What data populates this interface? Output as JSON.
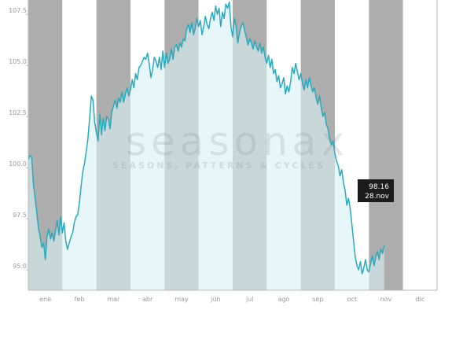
{
  "chart_data": {
    "type": "line",
    "x_labels": [
      "ene",
      "feb",
      "mar",
      "abr",
      "may",
      "jun",
      "jul",
      "ago",
      "sep",
      "oct",
      "nov",
      "dic"
    ],
    "y_ticks": [
      "95.0",
      "97.5",
      "100.0",
      "102.5",
      "105.0",
      "107.5"
    ],
    "ylim": [
      94.0,
      108.2
    ],
    "grid": "alternating month bands",
    "colors": {
      "line": "#29a9bd",
      "fill": "#d8f1f5",
      "band_gray": "#adadad",
      "tooltip_bg": "#1c1c1c"
    },
    "watermark": {
      "brand": "seasonax",
      "tagline": "SEASONS, PATTERNS & CYCLES"
    },
    "tooltip": {
      "value": "98.16",
      "date": "28.nov"
    },
    "series": [
      {
        "values": [
          [
            0.0,
            100.4
          ],
          [
            0.05,
            100.6
          ],
          [
            0.1,
            100.5
          ],
          [
            0.15,
            99.2
          ],
          [
            0.2,
            98.5
          ],
          [
            0.25,
            97.8
          ],
          [
            0.3,
            97.0
          ],
          [
            0.35,
            96.6
          ],
          [
            0.4,
            96.1
          ],
          [
            0.45,
            96.3
          ],
          [
            0.5,
            95.5
          ],
          [
            0.55,
            96.6
          ],
          [
            0.6,
            97.0
          ],
          [
            0.65,
            96.5
          ],
          [
            0.7,
            96.8
          ],
          [
            0.75,
            96.4
          ],
          [
            0.8,
            96.9
          ],
          [
            0.85,
            97.4
          ],
          [
            0.9,
            96.7
          ],
          [
            0.95,
            97.6
          ],
          [
            1.0,
            96.8
          ],
          [
            1.05,
            97.3
          ],
          [
            1.1,
            96.4
          ],
          [
            1.15,
            96.0
          ],
          [
            1.2,
            96.3
          ],
          [
            1.25,
            96.6
          ],
          [
            1.3,
            96.8
          ],
          [
            1.35,
            97.3
          ],
          [
            1.4,
            97.6
          ],
          [
            1.45,
            97.7
          ],
          [
            1.5,
            98.3
          ],
          [
            1.55,
            99.1
          ],
          [
            1.6,
            99.8
          ],
          [
            1.65,
            100.2
          ],
          [
            1.7,
            100.8
          ],
          [
            1.75,
            101.4
          ],
          [
            1.8,
            102.4
          ],
          [
            1.85,
            103.5
          ],
          [
            1.9,
            103.3
          ],
          [
            1.95,
            102.2
          ],
          [
            2.0,
            101.7
          ],
          [
            2.05,
            101.3
          ],
          [
            2.1,
            102.6
          ],
          [
            2.15,
            101.6
          ],
          [
            2.2,
            102.4
          ],
          [
            2.25,
            101.8
          ],
          [
            2.3,
            102.5
          ],
          [
            2.35,
            102.4
          ],
          [
            2.4,
            101.9
          ],
          [
            2.45,
            102.7
          ],
          [
            2.5,
            103.0
          ],
          [
            2.55,
            103.3
          ],
          [
            2.6,
            102.9
          ],
          [
            2.65,
            103.4
          ],
          [
            2.7,
            103.2
          ],
          [
            2.75,
            103.7
          ],
          [
            2.8,
            103.2
          ],
          [
            2.85,
            103.6
          ],
          [
            2.9,
            103.9
          ],
          [
            2.95,
            103.5
          ],
          [
            3.0,
            103.8
          ],
          [
            3.05,
            104.3
          ],
          [
            3.1,
            103.9
          ],
          [
            3.15,
            104.6
          ],
          [
            3.2,
            104.3
          ],
          [
            3.25,
            104.9
          ],
          [
            3.3,
            105.0
          ],
          [
            3.35,
            105.2
          ],
          [
            3.4,
            105.4
          ],
          [
            3.45,
            105.3
          ],
          [
            3.5,
            105.6
          ],
          [
            3.55,
            105.1
          ],
          [
            3.6,
            104.4
          ],
          [
            3.65,
            104.8
          ],
          [
            3.7,
            105.4
          ],
          [
            3.75,
            105.2
          ],
          [
            3.8,
            104.9
          ],
          [
            3.85,
            105.4
          ],
          [
            3.9,
            104.8
          ],
          [
            3.95,
            105.7
          ],
          [
            4.0,
            104.9
          ],
          [
            4.05,
            105.6
          ],
          [
            4.1,
            105.1
          ],
          [
            4.15,
            105.3
          ],
          [
            4.2,
            105.8
          ],
          [
            4.25,
            105.3
          ],
          [
            4.3,
            105.9
          ],
          [
            4.35,
            106.0
          ],
          [
            4.4,
            105.7
          ],
          [
            4.45,
            106.1
          ],
          [
            4.5,
            105.9
          ],
          [
            4.55,
            106.3
          ],
          [
            4.6,
            106.2
          ],
          [
            4.65,
            106.8
          ],
          [
            4.7,
            107.0
          ],
          [
            4.75,
            106.6
          ],
          [
            4.8,
            107.1
          ],
          [
            4.85,
            106.5
          ],
          [
            4.9,
            106.8
          ],
          [
            4.95,
            107.3
          ],
          [
            5.0,
            106.9
          ],
          [
            5.05,
            107.2
          ],
          [
            5.1,
            106.5
          ],
          [
            5.15,
            106.9
          ],
          [
            5.2,
            107.4
          ],
          [
            5.25,
            107.0
          ],
          [
            5.3,
            106.8
          ],
          [
            5.35,
            107.3
          ],
          [
            5.4,
            107.6
          ],
          [
            5.45,
            107.2
          ],
          [
            5.5,
            107.9
          ],
          [
            5.55,
            107.5
          ],
          [
            5.6,
            107.8
          ],
          [
            5.65,
            106.9
          ],
          [
            5.7,
            107.6
          ],
          [
            5.75,
            107.3
          ],
          [
            5.8,
            108.0
          ],
          [
            5.85,
            107.8
          ],
          [
            5.9,
            108.1
          ],
          [
            5.95,
            106.9
          ],
          [
            6.0,
            106.4
          ],
          [
            6.05,
            107.3
          ],
          [
            6.1,
            106.9
          ],
          [
            6.15,
            106.1
          ],
          [
            6.2,
            106.6
          ],
          [
            6.25,
            106.9
          ],
          [
            6.3,
            107.1
          ],
          [
            6.35,
            106.7
          ],
          [
            6.4,
            106.4
          ],
          [
            6.45,
            106.0
          ],
          [
            6.5,
            106.3
          ],
          [
            6.55,
            106.1
          ],
          [
            6.6,
            105.8
          ],
          [
            6.65,
            106.2
          ],
          [
            6.7,
            105.9
          ],
          [
            6.75,
            105.7
          ],
          [
            6.8,
            106.1
          ],
          [
            6.85,
            105.6
          ],
          [
            6.9,
            105.9
          ],
          [
            6.95,
            105.4
          ],
          [
            7.0,
            105.1
          ],
          [
            7.05,
            105.5
          ],
          [
            7.1,
            104.9
          ],
          [
            7.15,
            105.3
          ],
          [
            7.2,
            104.6
          ],
          [
            7.25,
            104.8
          ],
          [
            7.3,
            104.2
          ],
          [
            7.35,
            104.5
          ],
          [
            7.4,
            103.9
          ],
          [
            7.45,
            104.1
          ],
          [
            7.5,
            104.4
          ],
          [
            7.55,
            103.6
          ],
          [
            7.6,
            104.0
          ],
          [
            7.65,
            103.7
          ],
          [
            7.7,
            104.2
          ],
          [
            7.75,
            104.9
          ],
          [
            7.8,
            104.6
          ],
          [
            7.85,
            105.1
          ],
          [
            7.9,
            104.7
          ],
          [
            7.95,
            104.3
          ],
          [
            8.0,
            104.6
          ],
          [
            8.05,
            104.1
          ],
          [
            8.1,
            103.8
          ],
          [
            8.15,
            104.3
          ],
          [
            8.2,
            103.9
          ],
          [
            8.25,
            104.4
          ],
          [
            8.3,
            104.0
          ],
          [
            8.35,
            103.7
          ],
          [
            8.4,
            103.9
          ],
          [
            8.45,
            103.4
          ],
          [
            8.5,
            103.1
          ],
          [
            8.55,
            103.5
          ],
          [
            8.6,
            102.9
          ],
          [
            8.65,
            102.5
          ],
          [
            8.7,
            102.7
          ],
          [
            8.75,
            102.1
          ],
          [
            8.8,
            101.9
          ],
          [
            8.85,
            101.4
          ],
          [
            8.9,
            101.1
          ],
          [
            8.95,
            101.3
          ],
          [
            9.0,
            100.7
          ],
          [
            9.05,
            100.3
          ],
          [
            9.1,
            100.1
          ],
          [
            9.15,
            99.6
          ],
          [
            9.2,
            99.9
          ],
          [
            9.25,
            99.3
          ],
          [
            9.3,
            98.9
          ],
          [
            9.35,
            98.16
          ],
          [
            9.4,
            98.5
          ],
          [
            9.45,
            98.0
          ],
          [
            9.5,
            97.2
          ],
          [
            9.55,
            96.4
          ],
          [
            9.6,
            95.6
          ],
          [
            9.65,
            95.2
          ],
          [
            9.7,
            95.0
          ],
          [
            9.75,
            95.4
          ],
          [
            9.8,
            94.8
          ],
          [
            9.85,
            95.1
          ],
          [
            9.9,
            95.5
          ],
          [
            9.95,
            95.0
          ],
          [
            10.0,
            94.9
          ],
          [
            10.05,
            95.3
          ],
          [
            10.1,
            95.7
          ],
          [
            10.15,
            95.2
          ],
          [
            10.2,
            95.6
          ],
          [
            10.25,
            95.9
          ],
          [
            10.3,
            95.5
          ],
          [
            10.35,
            96.0
          ],
          [
            10.4,
            95.8
          ],
          [
            10.45,
            96.2
          ]
        ]
      }
    ]
  }
}
